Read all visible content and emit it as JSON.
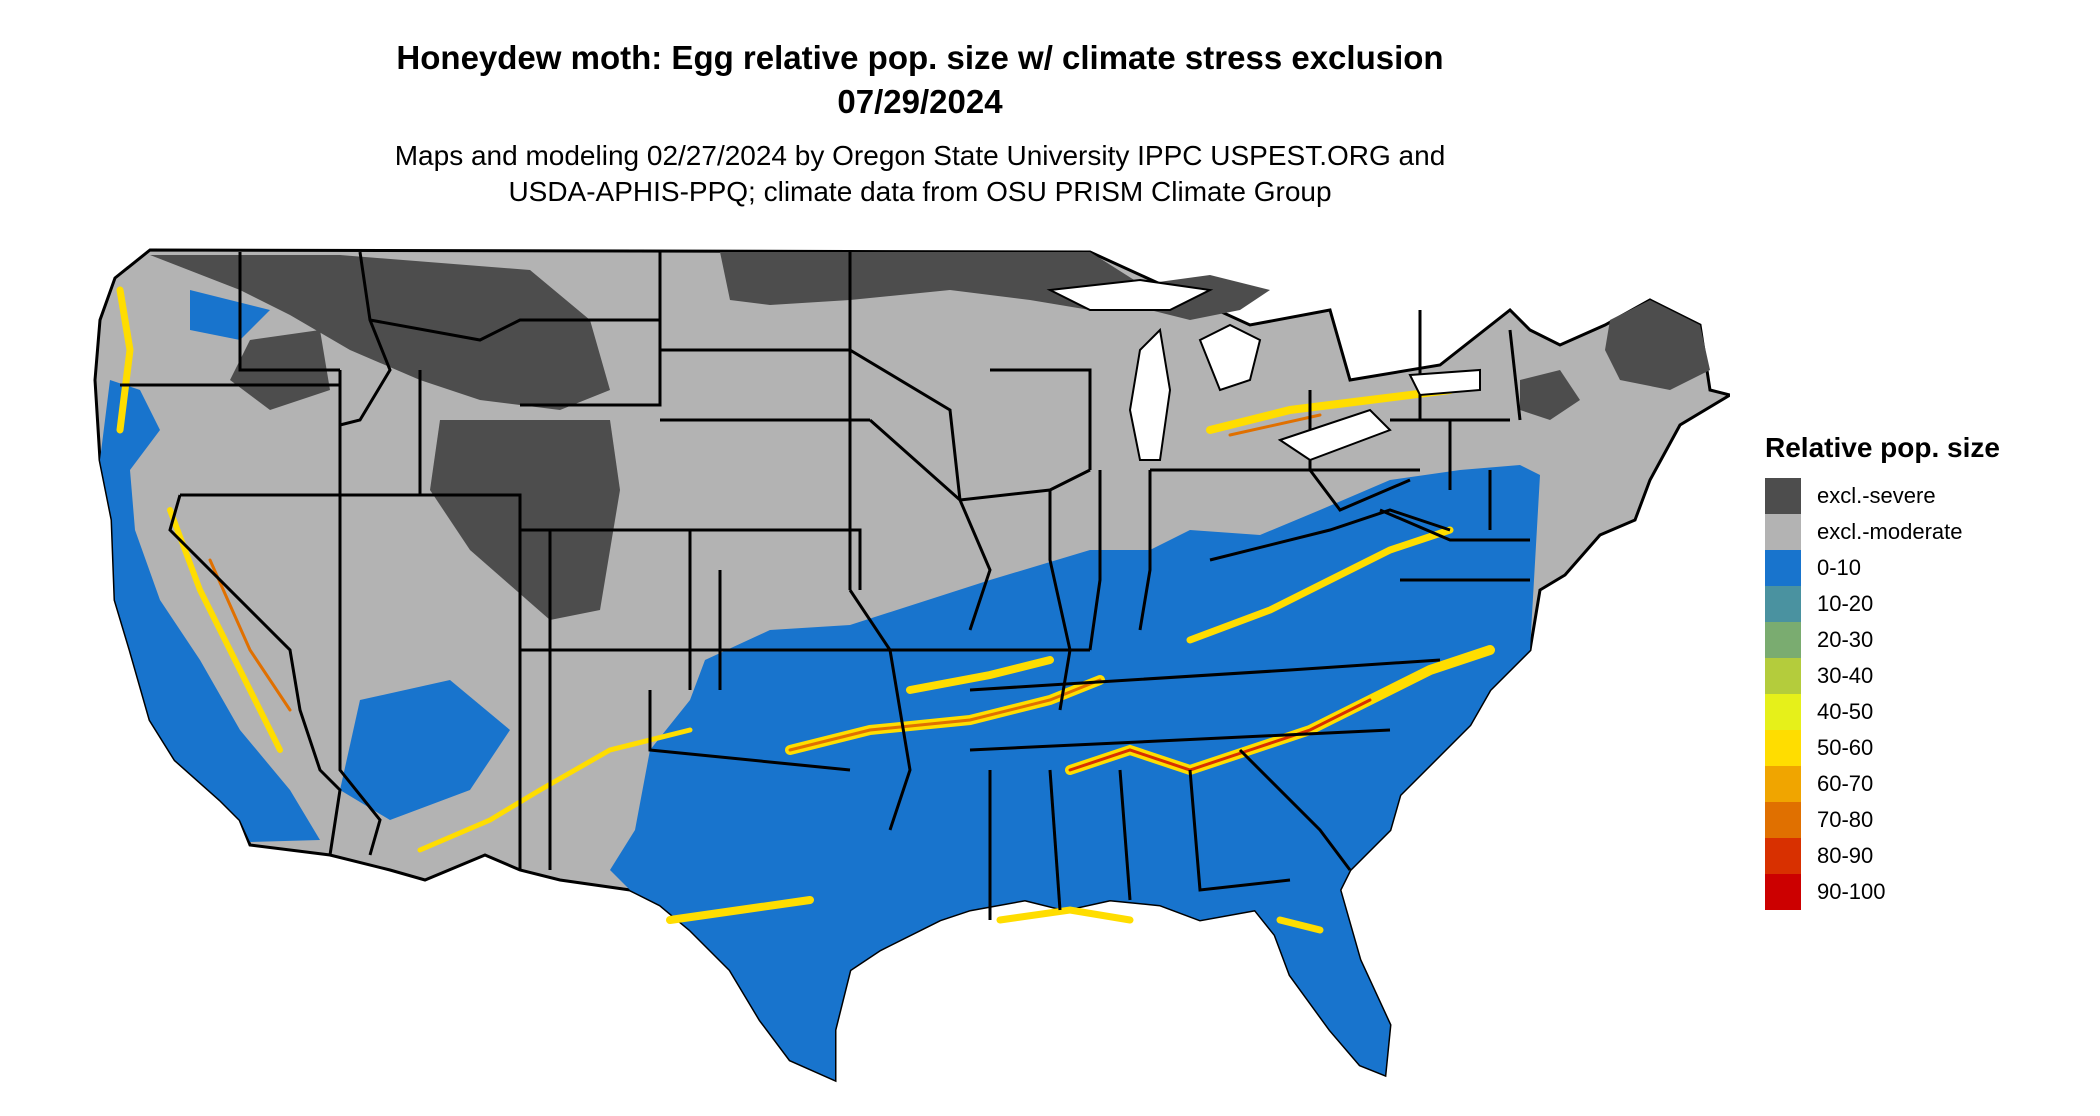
{
  "title": {
    "line1": "Honeydew moth: Egg relative pop. size w/ climate stress exclusion",
    "line2": "07/29/2024"
  },
  "subtitle": {
    "line1": "Maps and modeling 02/27/2024 by Oregon State University IPPC USPEST.ORG and",
    "line2": "USDA-APHIS-PPQ; climate data from OSU PRISM Climate Group"
  },
  "legend": {
    "title": "Relative pop. size",
    "items": [
      {
        "label": "excl.-severe",
        "color": "#4d4d4d"
      },
      {
        "label": "excl.-moderate",
        "color": "#b3b3b3"
      },
      {
        "label": "0-10",
        "color": "#1874cd"
      },
      {
        "label": "10-20",
        "color": "#4a92a0"
      },
      {
        "label": "20-30",
        "color": "#7aac70"
      },
      {
        "label": "30-40",
        "color": "#b4cc3c"
      },
      {
        "label": "40-50",
        "color": "#e6f01a"
      },
      {
        "label": "50-60",
        "color": "#ffdd00"
      },
      {
        "label": "60-70",
        "color": "#f0a500"
      },
      {
        "label": "70-80",
        "color": "#e07000"
      },
      {
        "label": "80-90",
        "color": "#d83000"
      },
      {
        "label": "90-100",
        "color": "#cc0000"
      }
    ]
  },
  "map_colors": {
    "severe": "#4d4d4d",
    "moderate": "#b3b3b3",
    "low": "#1874cd",
    "mid": "#ffdd00",
    "high": "#e07000",
    "border": "#000000"
  }
}
